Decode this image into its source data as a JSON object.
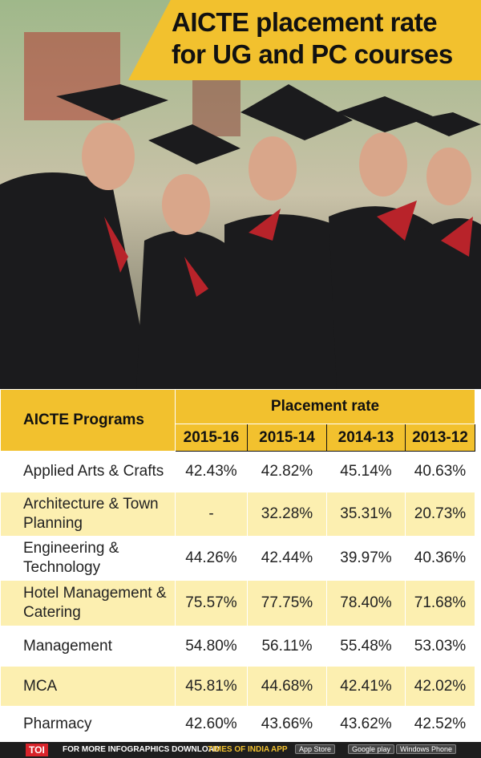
{
  "header": {
    "title_lines": [
      "AICTE placement rate",
      "for UG and PC courses"
    ]
  },
  "table": {
    "row_header": "AICTE Programs",
    "group_header": "Placement rate",
    "columns": [
      "2015-16",
      "2015-14",
      "2014-13",
      "2013-12"
    ],
    "rows": [
      [
        "Applied Arts & Crafts",
        "42.43%",
        "42.82%",
        "45.14%",
        "40.63%"
      ],
      [
        "Architecture & Town Planning",
        "-",
        "32.28%",
        "35.31%",
        "20.73%"
      ],
      [
        "Engineering & Technology",
        "44.26%",
        "42.44%",
        "39.97%",
        "40.36%"
      ],
      [
        "Hotel Management & Catering",
        "75.57%",
        "77.75%",
        "78.40%",
        "71.68%"
      ],
      [
        "Management",
        "54.80%",
        "56.11%",
        "55.48%",
        "53.03%"
      ],
      [
        "MCA",
        "45.81%",
        "44.68%",
        "42.41%",
        "42.02%"
      ],
      [
        "Pharmacy",
        "42.60%",
        "43.66%",
        "43.62%",
        "42.52%"
      ]
    ]
  },
  "footer": {
    "brand": "TOI",
    "text": "FOR MORE INFOGRAPHICS DOWNLOAD",
    "app_name": "TIMES OF INDIA",
    "app": "APP",
    "badges": [
      "App Store",
      "Google play",
      "Windows Phone"
    ]
  }
}
